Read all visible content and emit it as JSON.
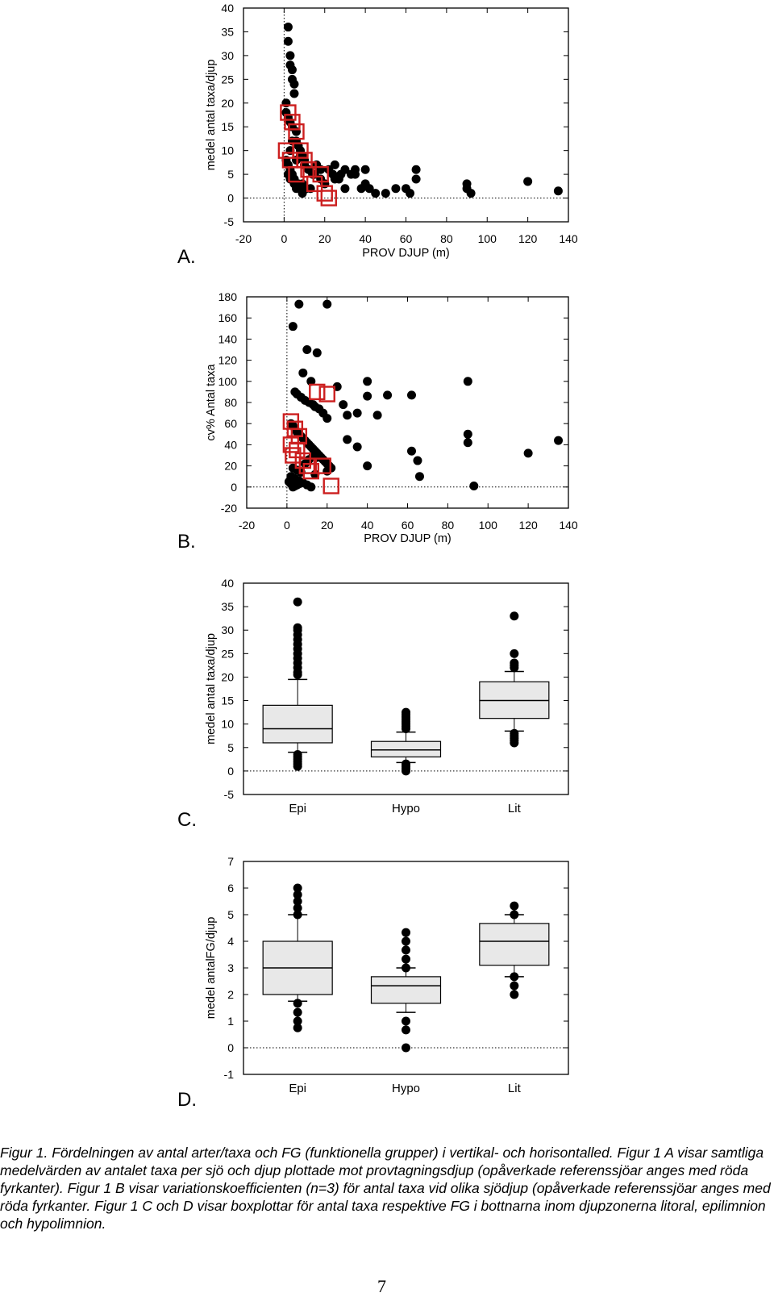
{
  "panels": [
    "A.",
    "B.",
    "C.",
    "D."
  ],
  "caption": "Figur 1. Fördelningen av antal arter/taxa och FG (funktionella grupper) i vertikal- och horisontalled. Figur 1 A visar samtliga medelvärden av antalet taxa per sjö och djup plottade mot provtagningsdjup (opåverkade referenssjöar anges med röda fyrkanter). Figur 1 B visar variationskoefficienten (n=3) för antal taxa vid olika sjödjup (opåverkade referenssjöar anges med röda fyrkanter. Figur 1 C och D visar boxplottar för antal taxa respektive FG i bottnarna inom djupzonerna litoral, epilimnion och hypolimnion.",
  "page_number": "7",
  "colors": {
    "points": "#000000",
    "reference_squares": "#cc1f1f",
    "box_fill": "#e8e8e8"
  },
  "chart_data": [
    {
      "type": "scatter",
      "panel": "A.",
      "xlabel": "PROV DJUP (m)",
      "ylabel": "medel antal taxa/djup",
      "xlim": [
        -20,
        140
      ],
      "ylim": [
        -5,
        40
      ],
      "xticks": [
        -20,
        0,
        20,
        40,
        60,
        80,
        100,
        120,
        140
      ],
      "yticks": [
        -5,
        0,
        5,
        10,
        15,
        20,
        25,
        30,
        35,
        40
      ],
      "series": [
        {
          "marker": "circle",
          "x": [
            2,
            2,
            3,
            3,
            4,
            4,
            5,
            5,
            1,
            1,
            2,
            3,
            4,
            6,
            6,
            7,
            8,
            9,
            10,
            10,
            12,
            14,
            15,
            16,
            18,
            18,
            20,
            22,
            24,
            25,
            27,
            28,
            30,
            33,
            35,
            38,
            40,
            42,
            45,
            50,
            55,
            60,
            62,
            65,
            90,
            90,
            92,
            120,
            135,
            3,
            4,
            6,
            8,
            10,
            12,
            15,
            5,
            7,
            9,
            11,
            13,
            2,
            3,
            5,
            6,
            8,
            9,
            1,
            2,
            3,
            4,
            5,
            20,
            25,
            30,
            35,
            40,
            65
          ],
          "y": [
            36,
            33,
            30,
            28,
            27,
            25,
            24,
            22,
            20,
            18,
            17,
            16,
            15,
            14,
            12,
            11,
            10,
            9,
            8,
            7,
            6,
            5,
            5,
            7,
            6,
            4,
            3,
            6,
            5,
            7,
            4,
            5,
            6,
            5,
            6,
            2,
            3,
            2,
            1,
            1,
            2,
            2,
            1,
            4,
            3,
            2,
            1,
            3.5,
            1.5,
            10,
            12,
            8,
            9,
            7,
            6,
            5,
            4,
            3,
            3,
            2,
            2,
            5,
            4,
            3,
            2,
            2,
            1,
            8,
            7,
            6,
            5,
            4,
            3,
            4,
            2,
            5,
            6,
            6
          ]
        },
        {
          "marker": "square",
          "name": "",
          "x": [
            2,
            4,
            6,
            1,
            3,
            8,
            10,
            6,
            12,
            15,
            18,
            20,
            22
          ],
          "y": [
            18,
            16,
            14,
            10,
            8,
            10,
            8,
            5,
            6,
            3,
            5,
            1,
            0
          ]
        }
      ]
    },
    {
      "type": "scatter",
      "panel": "B.",
      "xlabel": "PROV DJUP (m)",
      "ylabel": "cv% Antal taxa",
      "xlim": [
        -20,
        140
      ],
      "ylim": [
        -20,
        180
      ],
      "xticks": [
        -20,
        0,
        20,
        40,
        60,
        80,
        100,
        120,
        140
      ],
      "yticks": [
        -20,
        0,
        20,
        40,
        60,
        80,
        100,
        120,
        140,
        160,
        180
      ],
      "series": [
        {
          "marker": "circle",
          "x": [
            6,
            20,
            3,
            10,
            15,
            8,
            12,
            4,
            5,
            7,
            9,
            11,
            13,
            14,
            16,
            18,
            20,
            2,
            3,
            4,
            5,
            6,
            7,
            8,
            9,
            10,
            11,
            12,
            13,
            14,
            15,
            16,
            17,
            18,
            19,
            20,
            21,
            22,
            25,
            28,
            30,
            35,
            40,
            40,
            45,
            50,
            62,
            62,
            65,
            66,
            90,
            90,
            90,
            93,
            120,
            135,
            2,
            4,
            6,
            8,
            10,
            12,
            14,
            3,
            5,
            7,
            9,
            11,
            13,
            15,
            1,
            2,
            3,
            4,
            5,
            6,
            30,
            35,
            40,
            20
          ],
          "y": [
            173,
            173,
            152,
            130,
            127,
            108,
            100,
            90,
            88,
            85,
            82,
            80,
            78,
            76,
            74,
            70,
            65,
            60,
            58,
            55,
            52,
            50,
            48,
            46,
            44,
            42,
            40,
            38,
            36,
            34,
            32,
            30,
            28,
            26,
            24,
            22,
            20,
            18,
            95,
            78,
            68,
            70,
            100,
            86,
            68,
            87,
            87,
            34,
            25,
            10,
            100,
            50,
            42,
            1,
            32,
            44,
            10,
            8,
            6,
            4,
            2,
            0,
            12,
            18,
            16,
            14,
            22,
            26,
            30,
            28,
            5,
            3,
            0,
            1,
            2,
            3,
            45,
            38,
            20,
            15
          ]
        },
        {
          "marker": "square",
          "name": "",
          "x": [
            2,
            4,
            6,
            3,
            8,
            10,
            15,
            20,
            22,
            12,
            18,
            2,
            5
          ],
          "y": [
            62,
            55,
            48,
            30,
            25,
            20,
            90,
            88,
            1,
            15,
            20,
            40,
            35
          ]
        }
      ]
    },
    {
      "type": "box",
      "panel": "C.",
      "ylabel": "medel antal taxa/djup",
      "ylim": [
        -5,
        40
      ],
      "yticks": [
        -5,
        0,
        5,
        10,
        15,
        20,
        25,
        30,
        35,
        40
      ],
      "categories": [
        "Epi",
        "Hypo",
        "Lit"
      ],
      "boxes": [
        {
          "whisker_low": 4,
          "q1": 6,
          "median": 9,
          "q3": 14,
          "whisker_high": 19.5,
          "outliers": [
            36,
            30.5,
            30,
            29,
            28,
            27,
            26,
            25,
            24,
            23,
            22,
            21,
            20.5,
            3.5,
            3,
            2.5,
            2,
            1.5,
            1
          ]
        },
        {
          "whisker_low": 1.8,
          "q1": 3,
          "median": 4.5,
          "q3": 6.3,
          "whisker_high": 8.3,
          "outliers": [
            12.5,
            12,
            11.5,
            11,
            10.5,
            10,
            9.5,
            9,
            1.5,
            1,
            0.5,
            0
          ]
        },
        {
          "whisker_low": 8.5,
          "q1": 11.2,
          "median": 15,
          "q3": 19,
          "whisker_high": 21.2,
          "outliers": [
            33,
            25,
            23,
            22.5,
            22,
            8,
            7.5,
            7,
            6.5,
            6
          ]
        }
      ]
    },
    {
      "type": "box",
      "panel": "D.",
      "ylabel": "medel antalFG/djup",
      "ylim": [
        -1,
        7
      ],
      "yticks": [
        -1,
        0,
        1,
        2,
        3,
        4,
        5,
        6,
        7
      ],
      "categories": [
        "Epi",
        "Hypo",
        "Lit"
      ],
      "boxes": [
        {
          "whisker_low": 1.75,
          "q1": 2,
          "median": 3,
          "q3": 4,
          "whisker_high": 5,
          "outliers": [
            6,
            5.75,
            5.5,
            5.25,
            5,
            1.67,
            1.33,
            1,
            0.75
          ]
        },
        {
          "whisker_low": 1.33,
          "q1": 1.67,
          "median": 2.33,
          "q3": 2.67,
          "whisker_high": 3,
          "outliers": [
            4.33,
            4,
            3.67,
            3.33,
            3,
            1,
            0.67,
            0
          ]
        },
        {
          "whisker_low": 2.67,
          "q1": 3.1,
          "median": 4,
          "q3": 4.67,
          "whisker_high": 5,
          "outliers": [
            5.33,
            5,
            2.67,
            2.33,
            2
          ]
        }
      ]
    }
  ]
}
